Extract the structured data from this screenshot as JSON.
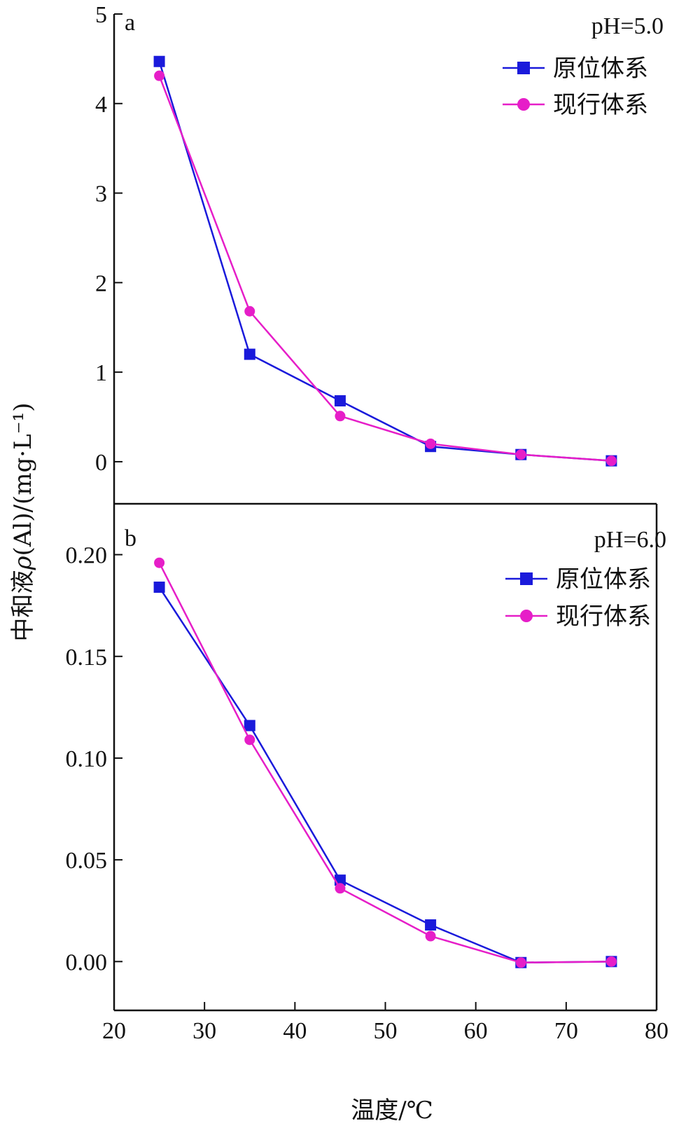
{
  "chart_data": [
    {
      "type": "line",
      "panel": "a",
      "annotation": "pH=5.0",
      "x": [
        25,
        35,
        45,
        55,
        65,
        75
      ],
      "xlim": [
        20,
        80
      ],
      "ylim": [
        -0.47,
        5
      ],
      "yticks": [
        "0",
        "1",
        "2",
        "3",
        "4",
        "5"
      ],
      "ytick_values": [
        0,
        1,
        2,
        3,
        4,
        5
      ],
      "series": [
        {
          "name": "原位体系",
          "color": "#1a1adb",
          "marker": "square",
          "values": [
            4.47,
            1.2,
            0.68,
            0.17,
            0.08,
            0.01
          ]
        },
        {
          "name": "现行体系",
          "color": "#e61ec8",
          "marker": "circle",
          "values": [
            4.31,
            1.68,
            0.51,
            0.2,
            0.08,
            0.01
          ]
        }
      ],
      "legend_position": "top-right"
    },
    {
      "type": "line",
      "panel": "b",
      "annotation": "pH=6.0",
      "x": [
        25,
        35,
        45,
        55,
        65,
        75
      ],
      "xlim": [
        20,
        80
      ],
      "ylim": [
        -0.024,
        0.225
      ],
      "yticks": [
        "0.00",
        "0.05",
        "0.10",
        "0.15",
        "0.20"
      ],
      "ytick_values": [
        0,
        0.05,
        0.1,
        0.15,
        0.2
      ],
      "xticks": [
        "20",
        "30",
        "40",
        "50",
        "60",
        "70",
        "80"
      ],
      "xtick_values": [
        20,
        30,
        40,
        50,
        60,
        70,
        80
      ],
      "series": [
        {
          "name": "原位体系",
          "color": "#1a1adb",
          "marker": "square",
          "values": [
            0.184,
            0.116,
            0.04,
            0.018,
            -0.0005,
            0.0
          ]
        },
        {
          "name": "现行体系",
          "color": "#e61ec8",
          "marker": "circle",
          "values": [
            0.196,
            0.109,
            0.036,
            0.0125,
            -0.0005,
            0.0
          ]
        }
      ],
      "legend_position": "top-right"
    }
  ],
  "xlabel": "温度/℃",
  "ylabel_prefix": "中和液",
  "ylabel_rho": "ρ",
  "ylabel_mid": "(Al)/(mg·L",
  "ylabel_sup": "⁻¹",
  "ylabel_end": ")"
}
